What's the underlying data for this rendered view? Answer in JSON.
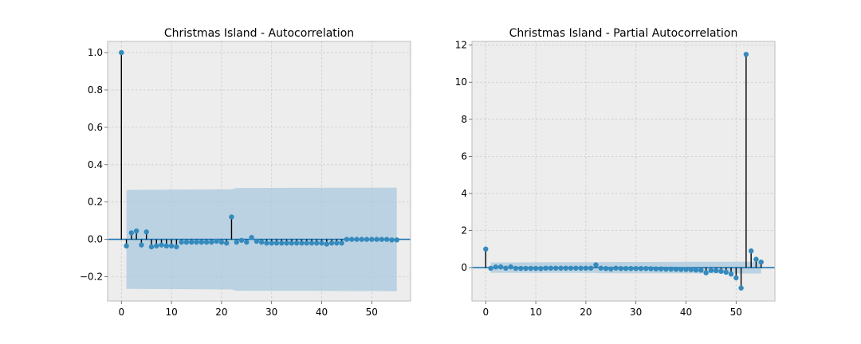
{
  "chart_data": [
    {
      "type": "stem",
      "title": "Christmas Island - Autocorrelation",
      "xlabel": "",
      "ylabel": "",
      "xlim": [
        -2.75,
        57.75
      ],
      "ylim": [
        -0.33,
        1.06
      ],
      "xticks": [
        0,
        10,
        20,
        30,
        40,
        50
      ],
      "yticks": [
        -0.2,
        0.0,
        0.2,
        0.4,
        0.6,
        0.8,
        1.0
      ],
      "ytick_labels": [
        "−0.2",
        "0.0",
        "0.2",
        "0.4",
        "0.6",
        "0.8",
        "1.0"
      ],
      "grid": true,
      "x": [
        0,
        1,
        2,
        3,
        4,
        5,
        6,
        7,
        8,
        9,
        10,
        11,
        12,
        13,
        14,
        15,
        16,
        17,
        18,
        19,
        20,
        21,
        22,
        23,
        24,
        25,
        26,
        27,
        28,
        29,
        30,
        31,
        32,
        33,
        34,
        35,
        36,
        37,
        38,
        39,
        40,
        41,
        42,
        43,
        44,
        45,
        46,
        47,
        48,
        49,
        50,
        51,
        52,
        53,
        54,
        55
      ],
      "values": [
        1.0,
        -0.035,
        0.035,
        0.045,
        -0.03,
        0.04,
        -0.04,
        -0.035,
        -0.03,
        -0.035,
        -0.035,
        -0.04,
        -0.015,
        -0.015,
        -0.015,
        -0.015,
        -0.015,
        -0.015,
        -0.015,
        -0.01,
        -0.015,
        -0.02,
        0.12,
        -0.015,
        -0.005,
        -0.015,
        0.01,
        -0.01,
        -0.015,
        -0.02,
        -0.02,
        -0.02,
        -0.02,
        -0.02,
        -0.02,
        -0.02,
        -0.02,
        -0.02,
        -0.02,
        -0.02,
        -0.02,
        -0.025,
        -0.02,
        -0.02,
        -0.02,
        0.0,
        0.0,
        0.0,
        0.0,
        0.0,
        0.0,
        0.0,
        0.0,
        0.0,
        -0.003,
        -0.003
      ],
      "confidence_band": {
        "x": [
          1,
          22,
          23,
          55
        ],
        "upper": [
          0.265,
          0.268,
          0.275,
          0.277
        ],
        "lower": [
          -0.265,
          -0.268,
          -0.275,
          -0.277
        ]
      }
    },
    {
      "type": "stem",
      "title": "Christmas Island - Partial Autocorrelation",
      "xlabel": "",
      "ylabel": "",
      "xlim": [
        -2.75,
        57.75
      ],
      "ylim": [
        -1.8,
        12.2
      ],
      "xticks": [
        0,
        10,
        20,
        30,
        40,
        50
      ],
      "yticks": [
        0,
        2,
        4,
        6,
        8,
        10,
        12
      ],
      "ytick_labels": [
        "0",
        "2",
        "4",
        "6",
        "8",
        "10",
        "12"
      ],
      "grid": true,
      "x": [
        0,
        1,
        2,
        3,
        4,
        5,
        6,
        7,
        8,
        9,
        10,
        11,
        12,
        13,
        14,
        15,
        16,
        17,
        18,
        19,
        20,
        21,
        22,
        23,
        24,
        25,
        26,
        27,
        28,
        29,
        30,
        31,
        32,
        33,
        34,
        35,
        36,
        37,
        38,
        39,
        40,
        41,
        42,
        43,
        44,
        45,
        46,
        47,
        48,
        49,
        50,
        51,
        52,
        53,
        54,
        55
      ],
      "values": [
        1.0,
        -0.035,
        0.035,
        0.04,
        -0.03,
        0.04,
        -0.04,
        -0.04,
        -0.04,
        -0.04,
        -0.04,
        -0.05,
        -0.03,
        -0.03,
        -0.03,
        -0.03,
        -0.03,
        -0.03,
        -0.03,
        -0.03,
        -0.03,
        -0.03,
        0.15,
        -0.03,
        -0.05,
        -0.07,
        -0.03,
        -0.05,
        -0.05,
        -0.05,
        -0.05,
        -0.05,
        -0.05,
        -0.06,
        -0.07,
        -0.07,
        -0.08,
        -0.08,
        -0.09,
        -0.1,
        -0.1,
        -0.11,
        -0.13,
        -0.14,
        -0.28,
        -0.15,
        -0.16,
        -0.2,
        -0.25,
        -0.35,
        -0.55,
        -1.1,
        11.5,
        0.9,
        0.45,
        0.3
      ],
      "confidence_band": {
        "x": [
          1,
          22,
          23,
          55
        ],
        "upper": [
          0.28,
          0.29,
          0.3,
          0.32
        ],
        "lower": [
          -0.28,
          -0.29,
          -0.3,
          -0.32
        ]
      }
    }
  ]
}
